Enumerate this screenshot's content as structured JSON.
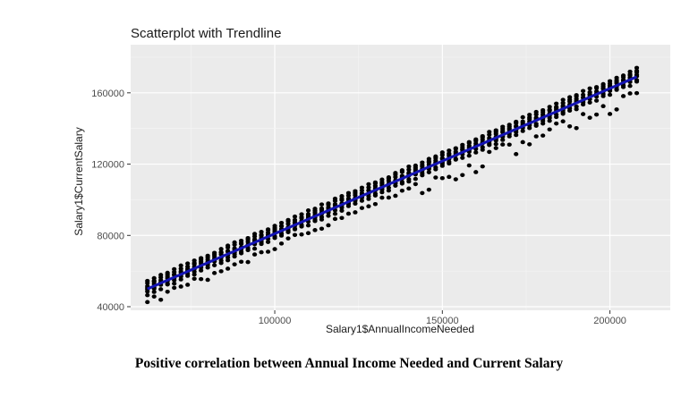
{
  "chart_data": {
    "type": "scatter",
    "title": "Scatterplot with Trendline",
    "xlabel": "Salary1$AnnualIncomeNeeded",
    "ylabel": "Salary1$CurrentSalary",
    "xlim": [
      57000,
      218000
    ],
    "ylim": [
      38000,
      187000
    ],
    "x_ticks": [
      100000,
      150000,
      200000
    ],
    "y_ticks": [
      40000,
      80000,
      120000,
      160000
    ],
    "grid": true,
    "legend": "none",
    "points_x_range": [
      62000,
      208000
    ],
    "points_x_step": 2000,
    "points_per_column": 8,
    "trendline": {
      "x": [
        62000,
        208000
      ],
      "y": [
        50000,
        169000
      ]
    },
    "colors": {
      "panel": "#ebebeb",
      "grid_major": "#ffffff",
      "grid_minor": "#f5f5f5",
      "points": "#000000",
      "trendline": "#1414b4"
    }
  },
  "caption": "Positive correlation between  Annual Income Needed and Current Salary"
}
